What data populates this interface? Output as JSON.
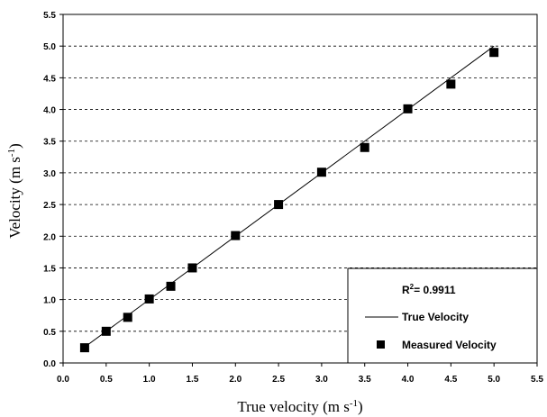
{
  "chart_data": {
    "type": "scatter",
    "xlabel": "True velocity (m s",
    "xlabel_sup": "-1",
    "xlabel_end": ")",
    "ylabel": "Velocity (m s",
    "ylabel_sup": "-1",
    "ylabel_end": ")",
    "xlim": [
      0.0,
      5.5
    ],
    "ylim": [
      0.0,
      5.5
    ],
    "xticks": [
      "0.0",
      "0.5",
      "1.0",
      "1.5",
      "2.0",
      "2.5",
      "3.0",
      "3.5",
      "4.0",
      "4.5",
      "5.0",
      "5.5"
    ],
    "yticks": [
      "0.0",
      "0.5",
      "1.0",
      "1.5",
      "2.0",
      "2.5",
      "3.0",
      "3.5",
      "4.0",
      "4.5",
      "5.0",
      "5.5"
    ],
    "grid": "horizontal dashed",
    "legend_position": "bottom-right",
    "r2_prefix": "R",
    "r2_sup": "2",
    "r2_value": "= 0.9911",
    "series": [
      {
        "name": "True Velocity",
        "style": "line",
        "color": "#000000",
        "points": [
          [
            0.25,
            0.25
          ],
          [
            5.0,
            5.0
          ]
        ]
      },
      {
        "name": "Measured Velocity",
        "style": "square-marker",
        "color": "#000000",
        "points": [
          [
            0.25,
            0.24
          ],
          [
            0.5,
            0.5
          ],
          [
            0.75,
            0.72
          ],
          [
            1.0,
            1.01
          ],
          [
            1.25,
            1.21
          ],
          [
            1.5,
            1.5
          ],
          [
            2.0,
            2.01
          ],
          [
            2.5,
            2.5
          ],
          [
            3.0,
            3.01
          ],
          [
            3.5,
            3.4
          ],
          [
            4.0,
            4.01
          ],
          [
            4.5,
            4.4
          ],
          [
            5.0,
            4.9
          ]
        ]
      }
    ]
  }
}
